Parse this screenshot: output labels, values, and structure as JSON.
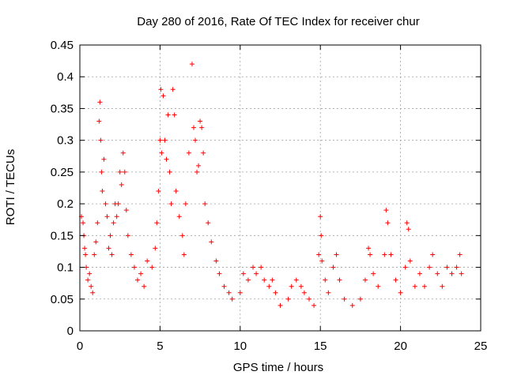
{
  "chart_data": {
    "type": "scatter",
    "title": "Day 280 of 2016, Rate Of TEC Index for receiver chur",
    "xlabel": "GPS time / hours",
    "ylabel": "ROTI / TECUs",
    "xlim": [
      0,
      25
    ],
    "ylim": [
      0,
      0.45
    ],
    "x_ticks": [
      0,
      5,
      10,
      15,
      20,
      25
    ],
    "x_tick_labels": [
      "0",
      "5",
      "10",
      "15",
      "20",
      "25"
    ],
    "y_ticks": [
      0,
      0.05,
      0.1,
      0.15,
      0.2,
      0.25,
      0.3,
      0.35,
      0.4,
      0.45
    ],
    "y_tick_labels": [
      "0",
      "0.05",
      "0.1",
      "0.15",
      "0.2",
      "0.25",
      "0.3",
      "0.35",
      "0.4",
      "0.45"
    ],
    "grid": true,
    "marker": "+",
    "color": "#ff0000",
    "series": [
      {
        "name": "ROTI",
        "points": [
          [
            0.1,
            0.18
          ],
          [
            0.2,
            0.17
          ],
          [
            0.25,
            0.15
          ],
          [
            0.3,
            0.13
          ],
          [
            0.35,
            0.12
          ],
          [
            0.4,
            0.1
          ],
          [
            0.5,
            0.08
          ],
          [
            0.6,
            0.09
          ],
          [
            0.7,
            0.07
          ],
          [
            0.8,
            0.06
          ],
          [
            0.9,
            0.12
          ],
          [
            1.0,
            0.14
          ],
          [
            1.1,
            0.17
          ],
          [
            1.2,
            0.33
          ],
          [
            1.25,
            0.36
          ],
          [
            1.3,
            0.3
          ],
          [
            1.35,
            0.25
          ],
          [
            1.4,
            0.22
          ],
          [
            1.5,
            0.27
          ],
          [
            1.6,
            0.2
          ],
          [
            1.7,
            0.18
          ],
          [
            1.8,
            0.13
          ],
          [
            1.9,
            0.15
          ],
          [
            2.0,
            0.12
          ],
          [
            2.1,
            0.17
          ],
          [
            2.2,
            0.2
          ],
          [
            2.3,
            0.18
          ],
          [
            2.4,
            0.2
          ],
          [
            2.5,
            0.25
          ],
          [
            2.6,
            0.23
          ],
          [
            2.7,
            0.28
          ],
          [
            2.8,
            0.25
          ],
          [
            2.9,
            0.19
          ],
          [
            3.0,
            0.15
          ],
          [
            3.2,
            0.12
          ],
          [
            3.4,
            0.1
          ],
          [
            3.6,
            0.08
          ],
          [
            3.8,
            0.09
          ],
          [
            4.0,
            0.07
          ],
          [
            4.2,
            0.11
          ],
          [
            4.5,
            0.1
          ],
          [
            4.7,
            0.13
          ],
          [
            4.8,
            0.17
          ],
          [
            4.9,
            0.22
          ],
          [
            5.0,
            0.3
          ],
          [
            5.05,
            0.38
          ],
          [
            5.1,
            0.28
          ],
          [
            5.2,
            0.37
          ],
          [
            5.3,
            0.3
          ],
          [
            5.4,
            0.27
          ],
          [
            5.5,
            0.34
          ],
          [
            5.6,
            0.25
          ],
          [
            5.7,
            0.2
          ],
          [
            5.8,
            0.38
          ],
          [
            5.9,
            0.34
          ],
          [
            6.0,
            0.22
          ],
          [
            6.2,
            0.18
          ],
          [
            6.4,
            0.15
          ],
          [
            6.5,
            0.12
          ],
          [
            6.6,
            0.2
          ],
          [
            6.8,
            0.28
          ],
          [
            7.0,
            0.42
          ],
          [
            7.1,
            0.32
          ],
          [
            7.2,
            0.3
          ],
          [
            7.3,
            0.25
          ],
          [
            7.4,
            0.26
          ],
          [
            7.5,
            0.33
          ],
          [
            7.6,
            0.32
          ],
          [
            7.7,
            0.28
          ],
          [
            7.8,
            0.2
          ],
          [
            8.0,
            0.17
          ],
          [
            8.2,
            0.14
          ],
          [
            8.5,
            0.11
          ],
          [
            8.7,
            0.09
          ],
          [
            9.0,
            0.07
          ],
          [
            9.3,
            0.06
          ],
          [
            9.5,
            0.05
          ],
          [
            10.0,
            0.06
          ],
          [
            10.2,
            0.09
          ],
          [
            10.5,
            0.08
          ],
          [
            10.8,
            0.1
          ],
          [
            11.0,
            0.09
          ],
          [
            11.3,
            0.1
          ],
          [
            11.5,
            0.08
          ],
          [
            11.8,
            0.07
          ],
          [
            12.0,
            0.08
          ],
          [
            12.2,
            0.06
          ],
          [
            12.5,
            0.04
          ],
          [
            13.0,
            0.05
          ],
          [
            13.2,
            0.07
          ],
          [
            13.5,
            0.08
          ],
          [
            13.8,
            0.07
          ],
          [
            14.0,
            0.06
          ],
          [
            14.3,
            0.05
          ],
          [
            14.6,
            0.04
          ],
          [
            14.9,
            0.12
          ],
          [
            15.0,
            0.18
          ],
          [
            15.05,
            0.15
          ],
          [
            15.1,
            0.11
          ],
          [
            15.3,
            0.08
          ],
          [
            15.5,
            0.06
          ],
          [
            15.8,
            0.1
          ],
          [
            16.0,
            0.12
          ],
          [
            16.2,
            0.08
          ],
          [
            16.5,
            0.05
          ],
          [
            17.0,
            0.04
          ],
          [
            17.5,
            0.05
          ],
          [
            17.8,
            0.08
          ],
          [
            18.0,
            0.13
          ],
          [
            18.1,
            0.12
          ],
          [
            18.3,
            0.09
          ],
          [
            18.6,
            0.07
          ],
          [
            19.0,
            0.12
          ],
          [
            19.1,
            0.19
          ],
          [
            19.2,
            0.17
          ],
          [
            19.4,
            0.12
          ],
          [
            19.7,
            0.08
          ],
          [
            20.0,
            0.06
          ],
          [
            20.3,
            0.1
          ],
          [
            20.4,
            0.17
          ],
          [
            20.5,
            0.16
          ],
          [
            20.6,
            0.11
          ],
          [
            20.9,
            0.07
          ],
          [
            21.2,
            0.09
          ],
          [
            21.5,
            0.07
          ],
          [
            21.8,
            0.1
          ],
          [
            22.0,
            0.12
          ],
          [
            22.3,
            0.09
          ],
          [
            22.6,
            0.07
          ],
          [
            22.9,
            0.1
          ],
          [
            23.2,
            0.09
          ],
          [
            23.5,
            0.1
          ],
          [
            23.7,
            0.12
          ],
          [
            23.8,
            0.09
          ]
        ]
      }
    ]
  }
}
